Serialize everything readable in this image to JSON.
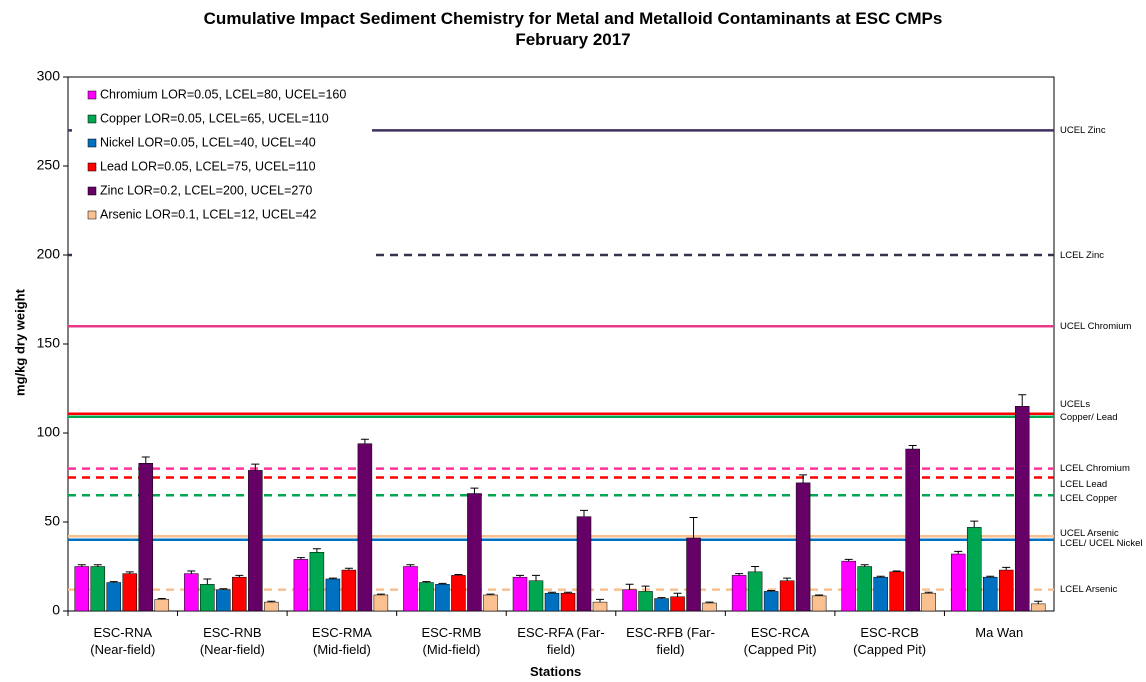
{
  "chart_data": {
    "type": "bar",
    "title": "Cumulative Impact Sediment Chemistry for Metal and Metalloid Contaminants at  ESC CMPs\nFebruary 2017",
    "x_label": "Stations",
    "y_label": "mg/kg dry weight",
    "categories": [
      "ESC-RNA\n(Near-field)",
      "ESC-RNB\n(Near-field)",
      "ESC-RMA\n(Mid-field)",
      "ESC-RMB\n(Mid-field)",
      "ESC-RFA (Far-\nfield)",
      "ESC-RFB (Far-\nfield)",
      "ESC-RCA\n(Capped Pit)",
      "ESC-RCB\n(Capped Pit)",
      "Ma Wan"
    ],
    "series": [
      {
        "name": "Chromium LOR=0.05, LCEL=80, UCEL=160",
        "color": "#ff00ff",
        "values": [
          25,
          21,
          29,
          25,
          19,
          12,
          20,
          28,
          32
        ],
        "errors": [
          1,
          1.5,
          1,
          1,
          1,
          3,
          1,
          1,
          1.5
        ]
      },
      {
        "name": "Copper LOR=0.05, LCEL=65, UCEL=110",
        "color": "#00a650",
        "values": [
          25,
          15,
          33,
          16,
          17,
          11,
          22,
          25,
          47
        ],
        "errors": [
          1,
          3,
          2,
          0.5,
          3,
          3,
          3,
          1,
          3.5
        ]
      },
      {
        "name": "Nickel LOR=0.05, LCEL=40, UCEL=40",
        "color": "#0070c0",
        "values": [
          16,
          12,
          18,
          15,
          10,
          7,
          11,
          19,
          19
        ],
        "errors": [
          0.5,
          0.5,
          0.5,
          0.5,
          0.5,
          0.5,
          0.5,
          0.5,
          0.5
        ]
      },
      {
        "name": "Lead LOR=0.05, LCEL=75, UCEL=110",
        "color": "#ff0000",
        "values": [
          21,
          19,
          23,
          20,
          10,
          8,
          17,
          22,
          23
        ],
        "errors": [
          1,
          1,
          1,
          0.5,
          0.5,
          2,
          1.5,
          0.5,
          1.5
        ]
      },
      {
        "name": "Zinc LOR=0.2, LCEL=200, UCEL=270",
        "color": "#660066",
        "values": [
          83,
          79,
          94,
          66,
          53,
          41,
          72,
          91,
          115
        ],
        "errors": [
          3.5,
          3.5,
          2.5,
          3,
          3.5,
          11.5,
          4.5,
          2,
          6.5
        ]
      },
      {
        "name": "Arsenic LOR=0.1, LCEL=12, UCEL=42",
        "color": "#fac090",
        "values": [
          6.5,
          5,
          9,
          9,
          5,
          4.5,
          8.5,
          10,
          4
        ],
        "errors": [
          0.5,
          0.5,
          0.5,
          0.5,
          1.5,
          0.5,
          0.5,
          0.5,
          1.5
        ]
      }
    ],
    "reference_lines": [
      {
        "value": 270,
        "label": "UCEL Zinc",
        "color": "#3f3160",
        "dashed": false
      },
      {
        "value": 200,
        "label": "LCEL Zinc",
        "color": "#33334d",
        "dashed": true
      },
      {
        "value": 160,
        "label": "UCEL Chromium",
        "color": "#e8388a",
        "dashed": false
      },
      {
        "value": 110,
        "label": "UCELs\nCopper/ Lead",
        "color": "#ff0000",
        "dashed": false
      },
      {
        "value": 110,
        "color": "#00a650",
        "dashed": false
      },
      {
        "value": 80,
        "label": "LCEL Chromium",
        "color": "#ff3399",
        "dashed": true
      },
      {
        "value": 75,
        "label": "LCEL Lead",
        "color": "#ff0000",
        "dashed": true
      },
      {
        "value": 65,
        "label": "LCEL Copper",
        "color": "#00a650",
        "dashed": true
      },
      {
        "value": 42,
        "label": "UCEL Arsenic",
        "color": "#fac090",
        "dashed": false
      },
      {
        "value": 40,
        "label": "LCEL/ UCEL Nickel",
        "color": "#0070c0",
        "dashed": false
      },
      {
        "value": 12,
        "label": "LCEL Arsenic",
        "color": "#fac090",
        "dashed": true
      }
    ],
    "ylim": [
      0,
      300
    ],
    "yticks": [
      0,
      50,
      100,
      150,
      200,
      250,
      300
    ],
    "legend": "upper left"
  }
}
